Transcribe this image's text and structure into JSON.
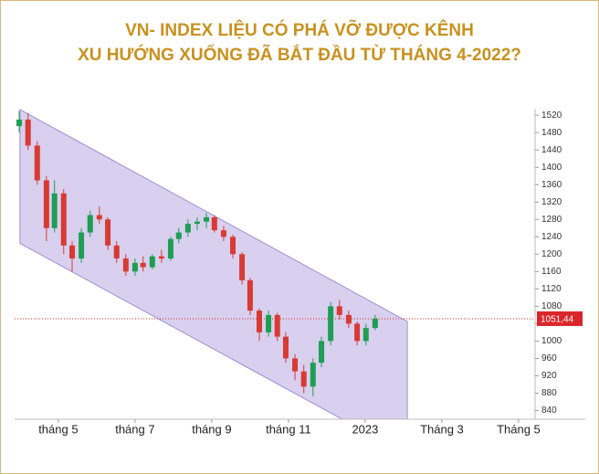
{
  "chart_data": {
    "type": "candlestick",
    "title": [
      "VN- INDEX LIỆU CÓ PHÁ VỠ ĐƯỢC KÊNH",
      "XU HƯỚNG XUỐNG ĐÃ BẮT ĐẦU TỪ THÁNG 4-2022?"
    ],
    "x": [
      3.98,
      4.21,
      4.45,
      4.69,
      4.9,
      5.14,
      5.36,
      5.6,
      5.83,
      6.07,
      6.29,
      6.52,
      6.76,
      7.0,
      7.21,
      7.45,
      7.69,
      7.93,
      8.14,
      8.38,
      8.62,
      8.86,
      9.07,
      9.31,
      9.55,
      9.79,
      10.0,
      10.24,
      10.48,
      10.71,
      10.93,
      11.17,
      11.4,
      11.64,
      11.86,
      12.1,
      12.33,
      12.57,
      12.79,
      13.02,
      13.26
    ],
    "open": [
      1495,
      1510,
      1450,
      1370,
      1260,
      1340,
      1220,
      1190,
      1250,
      1290,
      1280,
      1220,
      1190,
      1160,
      1180,
      1170,
      1195,
      1190,
      1235,
      1250,
      1270,
      1275,
      1285,
      1255,
      1240,
      1200,
      1140,
      1070,
      1020,
      1060,
      1010,
      960,
      930,
      895,
      950,
      1000,
      1080,
      1060,
      1040,
      1000,
      1030
    ],
    "high": [
      1530,
      1525,
      1460,
      1380,
      1370,
      1350,
      1230,
      1260,
      1300,
      1310,
      1285,
      1230,
      1200,
      1190,
      1195,
      1200,
      1210,
      1240,
      1260,
      1280,
      1285,
      1295,
      1290,
      1265,
      1245,
      1205,
      1145,
      1075,
      1070,
      1065,
      1020,
      970,
      945,
      960,
      1010,
      1090,
      1095,
      1070,
      1045,
      1040,
      1060
    ],
    "low": [
      1480,
      1440,
      1360,
      1230,
      1250,
      1200,
      1160,
      1180,
      1240,
      1270,
      1210,
      1180,
      1150,
      1150,
      1160,
      1165,
      1180,
      1185,
      1225,
      1240,
      1255,
      1260,
      1250,
      1230,
      1190,
      1130,
      1060,
      1000,
      1010,
      1000,
      950,
      910,
      880,
      873,
      940,
      990,
      1050,
      1030,
      990,
      990,
      1025
    ],
    "close": [
      1510,
      1450,
      1370,
      1260,
      1340,
      1220,
      1190,
      1250,
      1290,
      1280,
      1220,
      1190,
      1160,
      1180,
      1170,
      1195,
      1190,
      1235,
      1250,
      1270,
      1275,
      1285,
      1255,
      1240,
      1200,
      1140,
      1070,
      1020,
      1060,
      1010,
      960,
      930,
      895,
      950,
      1000,
      1080,
      1060,
      1040,
      1000,
      1030,
      1051.44
    ],
    "up_color": "#1f9d55",
    "down_color": "#d83a34",
    "channel": {
      "x": [
        4.0,
        14.1
      ],
      "upper": [
        1533,
        1045
      ],
      "lower": [
        1225,
        738
      ],
      "fill": "#d8d0ee",
      "stroke": "#9c90d2"
    },
    "last_price": {
      "value": 1051.44,
      "label": "1051,44",
      "color": "#d9262c"
    },
    "xlim": [
      3.86,
      17.43
    ],
    "xticks": [
      {
        "value": 5,
        "label": "tháng 5"
      },
      {
        "value": 7,
        "label": "tháng 7"
      },
      {
        "value": 9,
        "label": "tháng 9"
      },
      {
        "value": 11,
        "label": "tháng 11"
      },
      {
        "value": 13,
        "label": "2023"
      },
      {
        "value": 15,
        "label": "Tháng 3"
      },
      {
        "value": 17,
        "label": "Tháng 5"
      }
    ],
    "ylim": [
      820,
      1535
    ],
    "yticks": [
      840,
      880,
      920,
      960,
      1000,
      1040,
      1080,
      1120,
      1160,
      1200,
      1240,
      1280,
      1320,
      1360,
      1400,
      1440,
      1480,
      1520
    ]
  }
}
